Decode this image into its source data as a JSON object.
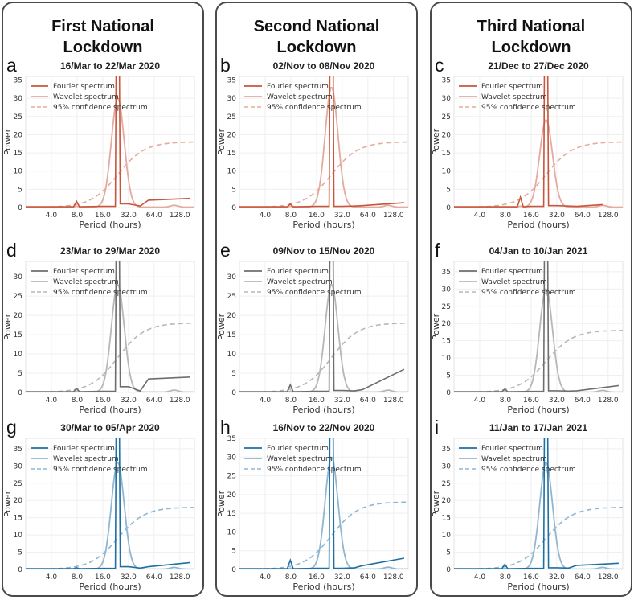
{
  "columns": [
    {
      "title_line1": "First National",
      "title_line2": "Lockdown"
    },
    {
      "title_line1": "Second National",
      "title_line2": "Lockdown"
    },
    {
      "title_line1": "Third National",
      "title_line2": "Lockdown"
    }
  ],
  "colors": {
    "red": "#c8553d",
    "gray": "#6e6e6e",
    "blue": "#1f6fa3"
  },
  "chart_data": [
    {
      "type": "line",
      "letter": "a",
      "title": "16/Mar to 22/Mar 2020",
      "xlabel": "Period (hours)",
      "ylabel": "Power",
      "ylim": [
        0,
        36
      ],
      "xticks": [
        "4.0",
        "8.0",
        "16.0",
        "32.0",
        "64.0",
        "128.0"
      ],
      "yticks": [
        0,
        5,
        10,
        15,
        20,
        25,
        30,
        35
      ],
      "legend": [
        "Fourier spectrum",
        "Wavelet spectrum",
        "95% confidence spectrum"
      ],
      "color": "red",
      "fourier": {
        "small": [
          7.9,
          1.7
        ],
        "peak": 24,
        "after": 1.0,
        "plateau": [
          [
            55,
            2.0
          ],
          [
            170,
            2.5
          ]
        ]
      },
      "wavelet_peak": 30
    },
    {
      "type": "line",
      "letter": "b",
      "title": "02/Nov to 08/Nov 2020",
      "xlabel": "Period (hours)",
      "ylabel": "Power",
      "ylim": [
        0,
        36
      ],
      "xticks": [
        "4.0",
        "8.0",
        "16.0",
        "32.0",
        "64.0",
        "128.0"
      ],
      "yticks": [
        0,
        5,
        10,
        15,
        20,
        25,
        30,
        35
      ],
      "legend": [
        "Fourier spectrum",
        "Wavelet spectrum",
        "95% confidence spectrum"
      ],
      "color": "red",
      "fourier": {
        "small": [
          7.9,
          1.0
        ],
        "peak": 24,
        "after": 0.3,
        "plateau": [
          [
            55,
            0.5
          ],
          [
            170,
            1.3
          ]
        ]
      },
      "wavelet_peak": 33
    },
    {
      "type": "line",
      "letter": "c",
      "title": "21/Dec to 27/Dec 2020",
      "xlabel": "Period (hours)",
      "ylabel": "Power",
      "ylim": [
        0,
        36
      ],
      "xticks": [
        "4.0",
        "8.0",
        "16.0",
        "32.0",
        "64.0",
        "128.0"
      ],
      "yticks": [
        0,
        5,
        10,
        15,
        20,
        25,
        30,
        35
      ],
      "legend": [
        "Fourier spectrum",
        "Wavelet spectrum",
        "95% confidence spectrum"
      ],
      "color": "red",
      "fourier": {
        "small": [
          12,
          2.8
        ],
        "peak": 24,
        "after": 0.5,
        "plateau": [
          [
            55,
            0.3
          ],
          [
            110,
            0.8
          ]
        ]
      },
      "wavelet_peak": 24
    },
    {
      "type": "line",
      "letter": "d",
      "title": "23/Mar to 29/Mar 2020",
      "xlabel": "Period (hours)",
      "ylabel": "Power",
      "ylim": [
        0,
        34
      ],
      "xticks": [
        "4.0",
        "8.0",
        "16.0",
        "32.0",
        "64.0",
        "128.0"
      ],
      "yticks": [
        0,
        5,
        10,
        15,
        20,
        25,
        30
      ],
      "legend": [
        "Fourier spectrum",
        "Wavelet spectrum",
        "95% confidence spectrum"
      ],
      "color": "gray",
      "fourier": {
        "small": [
          7.9,
          1.0
        ],
        "peak": 24,
        "after": 1.5,
        "plateau": [
          [
            55,
            3.5
          ],
          [
            170,
            4.0
          ]
        ]
      },
      "wavelet_peak": 28
    },
    {
      "type": "line",
      "letter": "e",
      "title": "09/Nov to 15/Nov 2020",
      "xlabel": "Period (hours)",
      "ylabel": "Power",
      "ylim": [
        0,
        34
      ],
      "xticks": [
        "4.0",
        "8.0",
        "16.0",
        "32.0",
        "64.0",
        "128.0"
      ],
      "yticks": [
        0,
        5,
        10,
        15,
        20,
        25,
        30
      ],
      "legend": [
        "Fourier spectrum",
        "Wavelet spectrum",
        "95% confidence spectrum"
      ],
      "color": "gray",
      "fourier": {
        "small": [
          7.9,
          2.0
        ],
        "peak": 24,
        "after": 0.5,
        "plateau": [
          [
            55,
            0.7
          ],
          [
            170,
            6.0
          ]
        ]
      },
      "wavelet_peak": 28
    },
    {
      "type": "line",
      "letter": "f",
      "title": "04/Jan to 10/Jan 2021",
      "xlabel": "Period (hours)",
      "ylabel": "Power",
      "ylim": [
        0,
        38
      ],
      "xticks": [
        "4.0",
        "8.0",
        "16.0",
        "32.0",
        "64.0",
        "128.0"
      ],
      "yticks": [
        0,
        5,
        10,
        15,
        20,
        25,
        30,
        35
      ],
      "legend": [
        "Fourier spectrum",
        "Wavelet spectrum",
        "95% confidence spectrum"
      ],
      "color": "gray",
      "fourier": {
        "small": [
          7.9,
          1.0
        ],
        "peak": 24,
        "after": 0.5,
        "plateau": [
          [
            55,
            0.5
          ],
          [
            170,
            2.0
          ]
        ]
      },
      "wavelet_peak": 30
    },
    {
      "type": "line",
      "letter": "g",
      "title": "30/Mar to 05/Apr 2020",
      "xlabel": "Period (hours)",
      "ylabel": "Power",
      "ylim": [
        0,
        38
      ],
      "xticks": [
        "4.0",
        "8.0",
        "16.0",
        "32.0",
        "64.0",
        "128.0"
      ],
      "yticks": [
        0,
        5,
        10,
        15,
        20,
        25,
        30,
        35
      ],
      "legend": [
        "Fourier spectrum",
        "Wavelet spectrum",
        "95% confidence spectrum"
      ],
      "color": "blue",
      "fourier": {
        "small": [
          7.9,
          0.5
        ],
        "peak": 24,
        "after": 0.8,
        "plateau": [
          [
            55,
            0.8
          ],
          [
            170,
            2.0
          ]
        ]
      },
      "wavelet_peak": 31
    },
    {
      "type": "line",
      "letter": "h",
      "title": "16/Nov to 22/Nov 2020",
      "xlabel": "Period (hours)",
      "ylabel": "Power",
      "ylim": [
        0,
        35
      ],
      "xticks": [
        "4.0",
        "8.0",
        "16.0",
        "32.0",
        "64.0",
        "128.0"
      ],
      "yticks": [
        0,
        5,
        10,
        15,
        20,
        25,
        30,
        35
      ],
      "legend": [
        "Fourier spectrum",
        "Wavelet spectrum",
        "95% confidence spectrum"
      ],
      "color": "blue",
      "fourier": {
        "small": [
          7.9,
          2.5
        ],
        "peak": 24,
        "after": 0.3,
        "plateau": [
          [
            55,
            1.0
          ],
          [
            170,
            3.0
          ]
        ]
      },
      "wavelet_peak": 30
    },
    {
      "type": "line",
      "letter": "i",
      "title": "11/Jan to 17/Jan 2021",
      "xlabel": "Period (hours)",
      "ylabel": "Power",
      "ylim": [
        0,
        38
      ],
      "xticks": [
        "4.0",
        "8.0",
        "16.0",
        "32.0",
        "64.0",
        "128.0"
      ],
      "yticks": [
        0,
        5,
        10,
        15,
        20,
        25,
        30,
        35
      ],
      "legend": [
        "Fourier spectrum",
        "Wavelet spectrum",
        "95% confidence spectrum"
      ],
      "color": "blue",
      "fourier": {
        "small": [
          7.9,
          1.5
        ],
        "peak": 24,
        "after": 0.5,
        "plateau": [
          [
            55,
            1.2
          ],
          [
            170,
            1.8
          ]
        ]
      },
      "wavelet_peak": 31
    }
  ]
}
